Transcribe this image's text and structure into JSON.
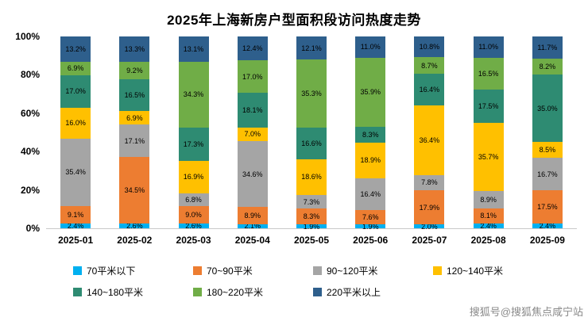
{
  "chart_data": {
    "type": "bar",
    "stacked": true,
    "title": "2025年上海新房户型面积段访问热度走势",
    "categories": [
      "2025-01",
      "2025-02",
      "2025-03",
      "2025-04",
      "2025-05",
      "2025-06",
      "2025-07",
      "2025-08",
      "2025-09"
    ],
    "yticks": [
      "0%",
      "20%",
      "40%",
      "60%",
      "80%",
      "100%"
    ],
    "ylim": [
      0,
      100
    ],
    "legend_position": "bottom",
    "grid": false,
    "series": [
      {
        "name": "70平米以下",
        "color": "#00B0F0",
        "values": [
          2.4,
          2.6,
          2.6,
          2.1,
          1.9,
          1.9,
          2.0,
          2.4,
          2.4
        ]
      },
      {
        "name": "70~90平米",
        "color": "#ED7D31",
        "values": [
          9.1,
          34.5,
          9.0,
          8.9,
          8.3,
          7.6,
          17.9,
          8.1,
          17.5
        ]
      },
      {
        "name": "90~120平米",
        "color": "#A5A5A5",
        "values": [
          35.4,
          17.1,
          6.8,
          34.6,
          7.3,
          16.4,
          7.8,
          8.9,
          16.7
        ]
      },
      {
        "name": "120~140平米",
        "color": "#FFC000",
        "values": [
          16.0,
          6.9,
          16.9,
          7.0,
          18.6,
          18.9,
          36.4,
          35.7,
          8.5
        ]
      },
      {
        "name": "140~180平米",
        "color": "#2E8B72",
        "values": [
          17.0,
          16.5,
          17.3,
          18.1,
          16.6,
          8.3,
          16.4,
          17.5,
          35.0
        ]
      },
      {
        "name": "180~220平米",
        "color": "#70AD47",
        "values": [
          6.9,
          9.2,
          34.3,
          17.0,
          35.3,
          35.9,
          8.7,
          16.5,
          8.2
        ]
      },
      {
        "name": "220平米以上",
        "color": "#2E5F8C",
        "values": [
          13.2,
          13.3,
          13.1,
          12.4,
          12.1,
          11.0,
          10.8,
          11.0,
          11.7
        ]
      }
    ]
  },
  "watermark": {
    "text": "搜狐号@搜狐焦点咸宁站"
  }
}
